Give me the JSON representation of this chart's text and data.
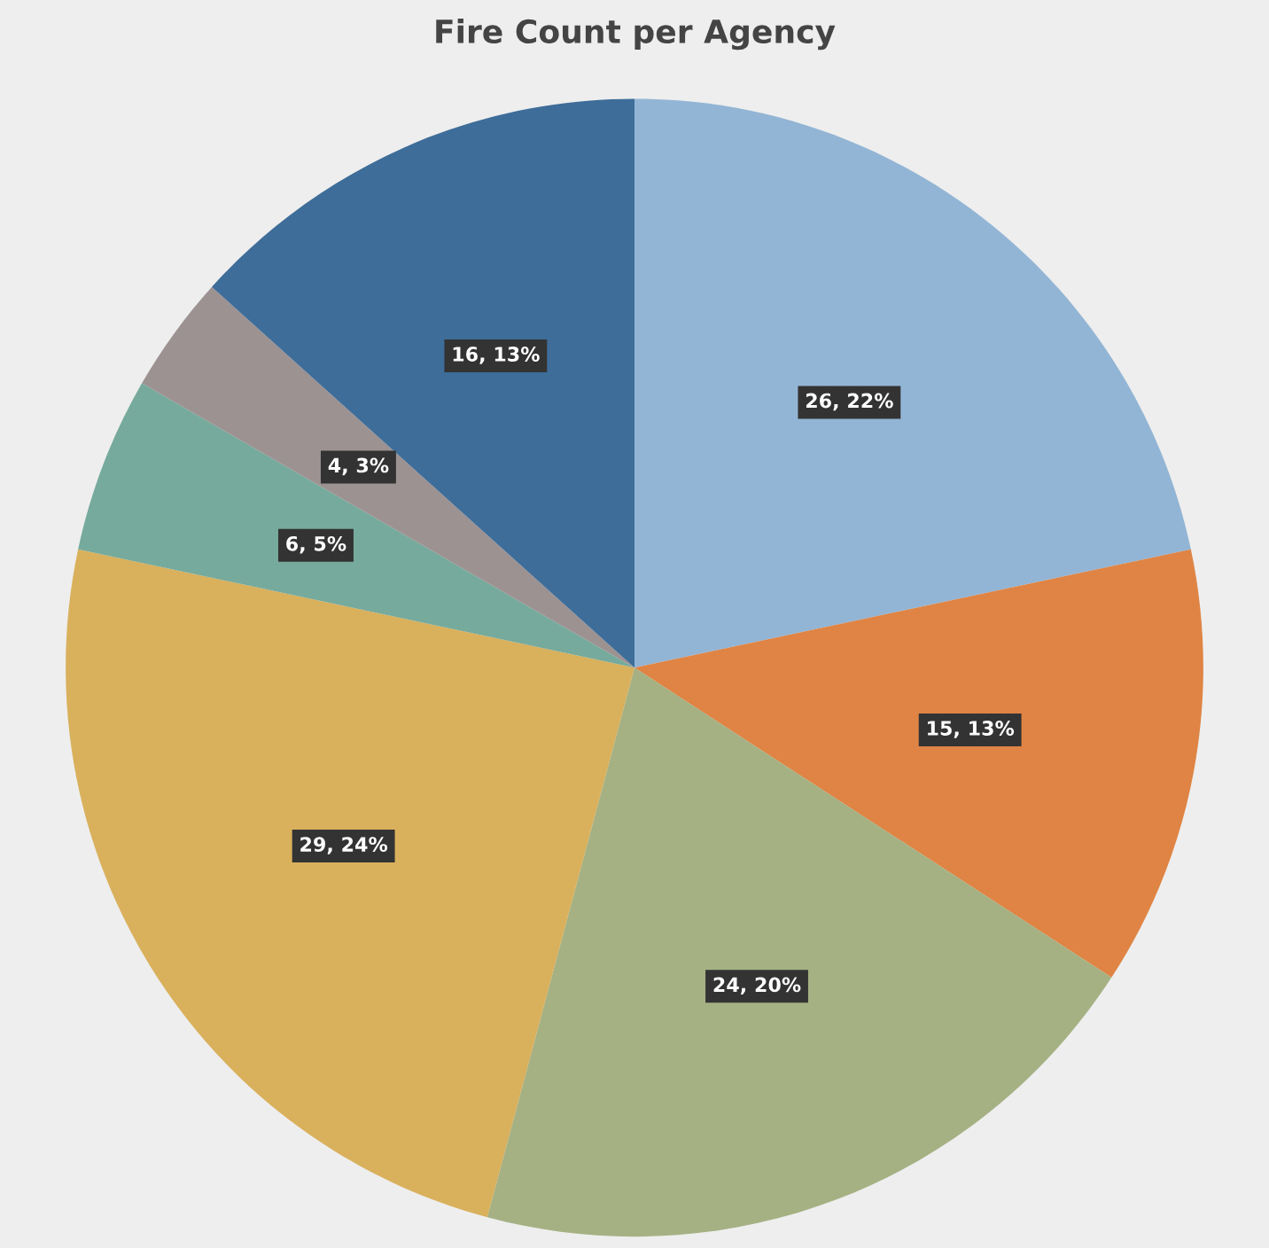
{
  "chart_data": {
    "type": "pie",
    "title": "Fire Count per Agency",
    "categories": [
      null,
      null,
      null,
      null,
      null,
      null,
      null
    ],
    "values": [
      26,
      15,
      24,
      29,
      6,
      4,
      16
    ],
    "value_labels": [
      "26, 22%",
      "15, 13%",
      "24, 20%",
      "29, 24%",
      "6, 5%",
      "4, 3%",
      "16, 13%"
    ],
    "colors": [
      "#93b5d5",
      "#df8444",
      "#a5b183",
      "#d9b05c",
      "#76aa9c",
      "#9d9292",
      "#3e6d99"
    ]
  }
}
